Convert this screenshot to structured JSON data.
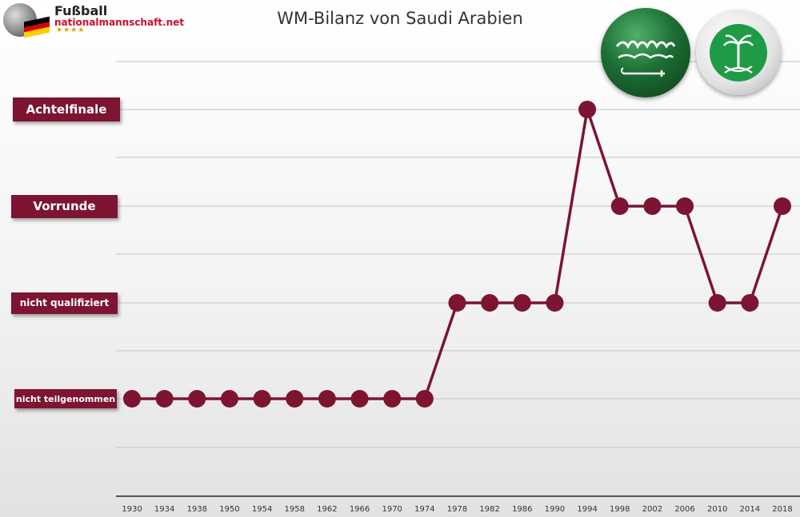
{
  "colors": {
    "accent": "#7d1431",
    "grid": "#c4c4c4",
    "axis": "#555555",
    "flag_green": "#1d6e34",
    "crest_green": "#1f9b45"
  },
  "logo": {
    "name_line1": "Fußball",
    "name_line2": "nationalmannschaft.net",
    "stars": "★★★★"
  },
  "chart_data": {
    "type": "line",
    "title": "WM-Bilanz von Saudi Arabien",
    "xlabel": "",
    "ylabel": "",
    "categories": [
      "1930",
      "1934",
      "1938",
      "1950",
      "1954",
      "1958",
      "1962",
      "1966",
      "1970",
      "1974",
      "1978",
      "1982",
      "1986",
      "1990",
      "1994",
      "1998",
      "2002",
      "2006",
      "2010",
      "2014",
      "2018"
    ],
    "y_levels": [
      "nicht teilgenommen",
      "nicht qualifiziert",
      "Vorrunde",
      "Achtelfinale"
    ],
    "values": [
      0,
      0,
      0,
      0,
      0,
      0,
      0,
      0,
      0,
      0,
      1,
      1,
      1,
      1,
      3,
      2,
      2,
      2,
      1,
      1,
      2
    ],
    "grid": true,
    "legend": "none"
  }
}
